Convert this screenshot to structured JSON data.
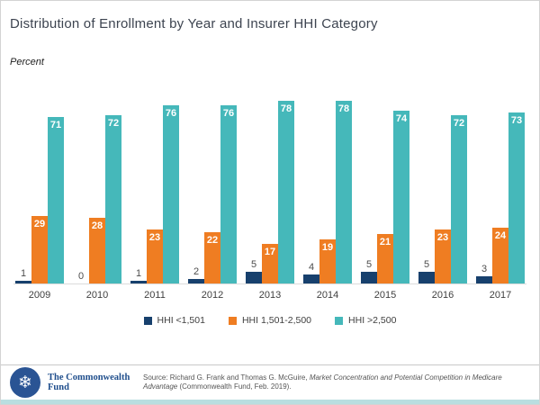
{
  "page": {
    "title": "Distribution of Enrollment by Year and Insurer HHI Category",
    "axis_note": "Percent"
  },
  "chart_data": {
    "type": "bar",
    "title": "Distribution of Enrollment by Year and Insurer HHI Category",
    "ylabel": "Percent",
    "ylim": [
      0,
      80
    ],
    "grid": false,
    "legend_position": "bottom",
    "value_labels": true,
    "categories": [
      "2009",
      "2010",
      "2011",
      "2012",
      "2013",
      "2014",
      "2015",
      "2016",
      "2017"
    ],
    "series": [
      {
        "name": "HHI <1,501",
        "color": "#17406d",
        "label_style": "above",
        "values": [
          1,
          0,
          1,
          2,
          5,
          4,
          5,
          5,
          3
        ]
      },
      {
        "name": "HHI 1,501-2,500",
        "color": "#ef7d22",
        "label_style": "inside",
        "values": [
          29,
          28,
          23,
          22,
          17,
          19,
          21,
          23,
          24
        ]
      },
      {
        "name": "HHI >2,500",
        "color": "#45b8ba",
        "label_style": "inside",
        "values": [
          71,
          72,
          76,
          76,
          78,
          78,
          74,
          72,
          73
        ]
      }
    ]
  },
  "footer": {
    "logo_text": "The Commonwealth Fund",
    "logo_icon": "snowflake",
    "source_prefix": "Source: Richard G. Frank and Thomas G. McGuire, ",
    "source_italic": "Market Concentration and Potential Competition in Medicare Advantage",
    "source_suffix": " (Commonwealth Fund, Feb. 2019)."
  },
  "colors": {
    "navy": "#17406d",
    "orange": "#ef7d22",
    "teal": "#45b8ba",
    "logo_blue": "#2a5494",
    "bottom_strip": "#b9dee0",
    "title_text": "#3d4450"
  }
}
